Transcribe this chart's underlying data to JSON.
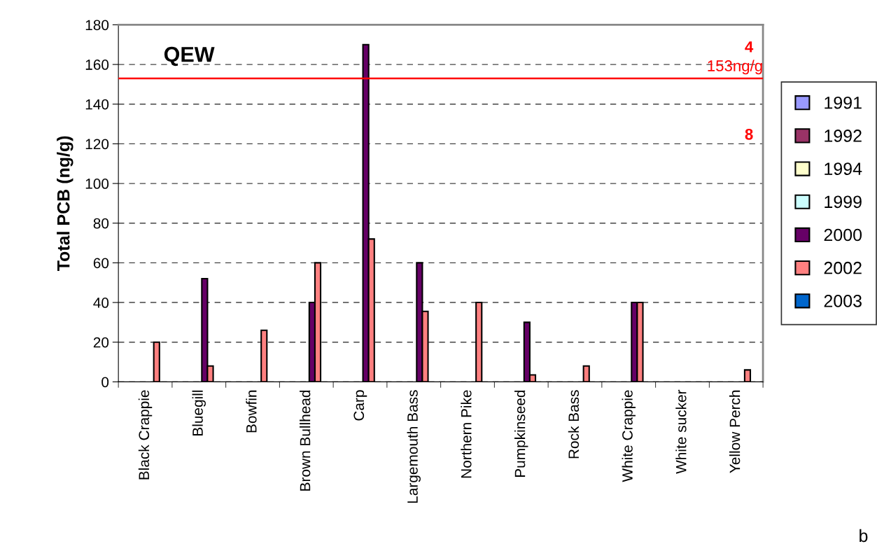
{
  "chart_data": {
    "type": "bar",
    "title": "QEW",
    "ylabel": "Total PCB (ng/g)",
    "categories": [
      "Black Crappie",
      "Bluegill",
      "Bowfin",
      "Brown Bullhead",
      "Carp",
      "Largemouth Bass",
      "Northern Pike",
      "Pumpkinseed",
      "Rock Bass",
      "White Crappie",
      "White sucker",
      "Yellow Perch"
    ],
    "series": [
      {
        "name": "1991",
        "color": "#9999ff",
        "values": [
          null,
          null,
          null,
          null,
          null,
          null,
          null,
          null,
          null,
          null,
          null,
          null
        ]
      },
      {
        "name": "1992",
        "color": "#993366",
        "values": [
          null,
          null,
          null,
          null,
          null,
          null,
          null,
          null,
          null,
          null,
          null,
          null
        ]
      },
      {
        "name": "1994",
        "color": "#ffffcc",
        "values": [
          null,
          null,
          null,
          null,
          null,
          null,
          null,
          null,
          null,
          null,
          null,
          null
        ]
      },
      {
        "name": "1999",
        "color": "#ccffff",
        "values": [
          null,
          null,
          null,
          null,
          null,
          null,
          null,
          null,
          null,
          null,
          null,
          null
        ]
      },
      {
        "name": "2000",
        "color": "#660066",
        "values": [
          null,
          52,
          null,
          40,
          170,
          60,
          null,
          30,
          null,
          40,
          null,
          null
        ]
      },
      {
        "name": "2002",
        "color": "#ff8080",
        "values": [
          20,
          8,
          26,
          60,
          72,
          35.5,
          40,
          3.5,
          8,
          40,
          null,
          6
        ]
      },
      {
        "name": "2003",
        "color": "#0066cc",
        "values": [
          null,
          null,
          null,
          null,
          null,
          null,
          null,
          null,
          null,
          null,
          null,
          null
        ]
      }
    ],
    "ylim": [
      0,
      180
    ],
    "yticks": [
      0,
      20,
      40,
      60,
      80,
      100,
      120,
      140,
      160,
      180
    ],
    "grid": "y",
    "legend": "right",
    "ref_lines": [
      {
        "axis": "y",
        "value": 153,
        "label": "153ng/g",
        "color": "#ff0000",
        "line_style": "solid"
      }
    ],
    "annotations": [
      "4",
      "8",
      "b"
    ]
  }
}
